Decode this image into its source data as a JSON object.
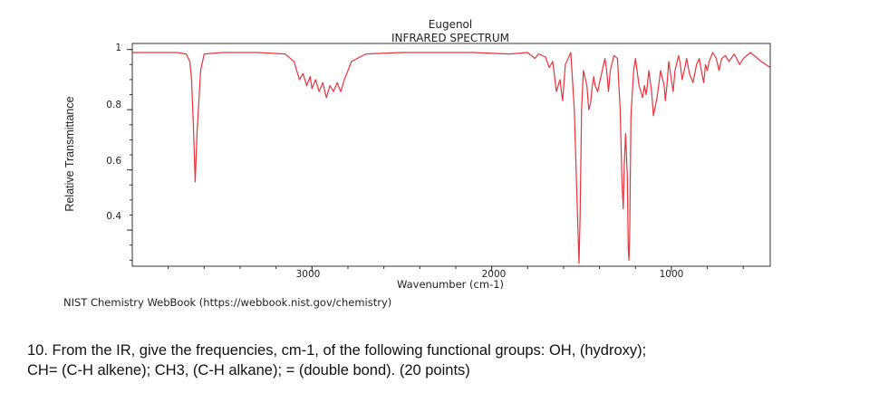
{
  "chart_data": {
    "type": "line",
    "title": "Eugenol",
    "subtitle": "INFRARED SPECTRUM",
    "xlabel": "Wavenumber (cm-1)",
    "ylabel": "Relative Transmittance",
    "xlim": [
      4000,
      450
    ],
    "ylim": [
      0.28,
      1.02
    ],
    "x_reversed": true,
    "x_ticks": [
      "3000",
      "2000",
      "1000"
    ],
    "y_ticks": [
      "1",
      "0.8",
      "0.6",
      "0.4"
    ],
    "grid": false,
    "line_color": "#e8323c",
    "source_note": "NIST Chemistry WebBook (https://webbook.nist.gov/chemistry)",
    "series": [
      {
        "x": [
          4000,
          3900,
          3750,
          3700,
          3680,
          3670,
          3660,
          3650,
          3640,
          3620,
          3600,
          3500,
          3300,
          3150,
          3100,
          3080,
          3070,
          3050,
          3030,
          3010,
          3000,
          2980,
          2960,
          2940,
          2920,
          2900,
          2880,
          2860,
          2840,
          2820,
          2780,
          2700,
          2500,
          2300,
          2100,
          1900,
          1800,
          1760,
          1740,
          1700,
          1680,
          1660,
          1640,
          1620,
          1610,
          1605,
          1600,
          1590,
          1560,
          1540,
          1520,
          1514,
          1508,
          1500,
          1490,
          1470,
          1460,
          1450,
          1440,
          1432,
          1425,
          1410,
          1400,
          1370,
          1360,
          1350,
          1340,
          1320,
          1300,
          1285,
          1275,
          1268,
          1262,
          1255,
          1245,
          1240,
          1236,
          1232,
          1225,
          1210,
          1200,
          1180,
          1160,
          1150,
          1140,
          1125,
          1110,
          1100,
          1080,
          1060,
          1040,
          1034,
          1025,
          1015,
          1000,
          990,
          980,
          960,
          950,
          940,
          925,
          915,
          900,
          880,
          860,
          845,
          830,
          820,
          810,
          800,
          790,
          770,
          750,
          735,
          720,
          700,
          680,
          650,
          620,
          600,
          560,
          500,
          450
        ],
        "y": [
          0.99,
          0.99,
          0.99,
          0.985,
          0.96,
          0.9,
          0.75,
          0.56,
          0.72,
          0.93,
          0.985,
          0.99,
          0.99,
          0.985,
          0.96,
          0.92,
          0.9,
          0.92,
          0.88,
          0.91,
          0.87,
          0.9,
          0.86,
          0.89,
          0.84,
          0.88,
          0.86,
          0.89,
          0.86,
          0.9,
          0.96,
          0.985,
          0.99,
          0.99,
          0.99,
          0.985,
          0.99,
          0.97,
          0.985,
          0.975,
          0.94,
          0.96,
          0.86,
          0.9,
          0.85,
          0.83,
          0.87,
          0.95,
          0.99,
          0.8,
          0.4,
          0.29,
          0.45,
          0.8,
          0.93,
          0.88,
          0.8,
          0.82,
          0.88,
          0.91,
          0.88,
          0.86,
          0.89,
          0.97,
          0.93,
          0.86,
          0.93,
          0.98,
          0.97,
          0.8,
          0.56,
          0.47,
          0.62,
          0.72,
          0.58,
          0.34,
          0.3,
          0.38,
          0.78,
          0.93,
          0.97,
          0.88,
          0.84,
          0.88,
          0.85,
          0.93,
          0.86,
          0.78,
          0.84,
          0.93,
          0.88,
          0.83,
          0.88,
          0.96,
          0.9,
          0.86,
          0.93,
          0.98,
          0.95,
          0.9,
          0.94,
          0.97,
          0.92,
          0.89,
          0.95,
          0.97,
          0.92,
          0.89,
          0.95,
          0.93,
          0.96,
          0.99,
          0.97,
          0.93,
          0.97,
          0.98,
          0.96,
          0.985,
          0.95,
          0.97,
          0.99,
          0.96,
          0.94
        ]
      }
    ]
  },
  "question": {
    "line1": "10. From the IR, give the frequencies, cm-1, of  the following functional groups:  OH, (hydroxy);",
    "line2": "CH=  (C-H alkene); CH3,  (C-H alkane); =  (double bond). (20 points)"
  }
}
